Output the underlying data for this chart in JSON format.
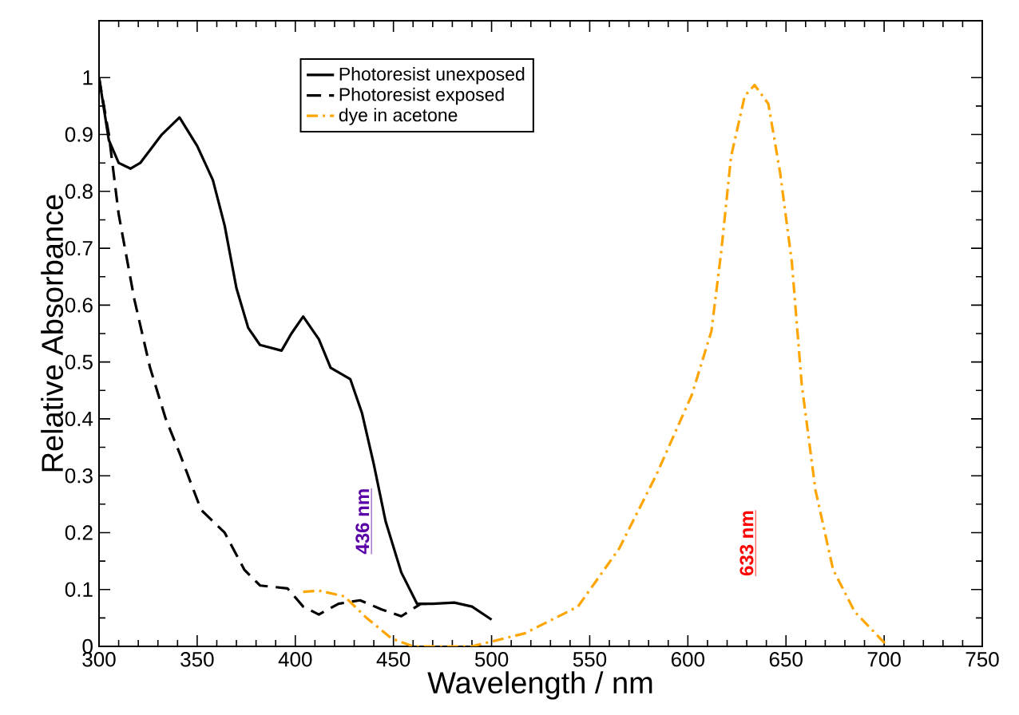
{
  "chart_data": {
    "type": "line",
    "xlabel": "Wavelength / nm",
    "ylabel": "Relative Absorbance",
    "xlim": [
      300,
      750
    ],
    "ylim": [
      0,
      1.1
    ],
    "xticks": [
      300,
      350,
      400,
      450,
      500,
      550,
      600,
      650,
      700,
      750
    ],
    "yticks": [
      0,
      0.1,
      0.2,
      0.3,
      0.4,
      0.5,
      0.6,
      0.7,
      0.8,
      0.9,
      1
    ],
    "grid": false,
    "legend": "top",
    "marker": "none",
    "annotations": [
      "436 nm",
      "633 nm"
    ],
    "series": [
      {
        "name": "Photoresist unexposed",
        "color": "#000000",
        "line_style": "solid",
        "x": [
          300,
          305,
          310,
          316,
          321,
          332,
          341,
          350,
          358,
          364,
          370,
          376,
          382,
          393,
          398,
          404,
          412,
          418,
          428,
          434,
          440,
          446,
          454,
          462,
          470,
          481,
          490,
          500
        ],
        "values": [
          1.0,
          0.89,
          0.85,
          0.84,
          0.85,
          0.9,
          0.93,
          0.88,
          0.82,
          0.74,
          0.63,
          0.56,
          0.53,
          0.52,
          0.55,
          0.58,
          0.54,
          0.49,
          0.47,
          0.41,
          0.32,
          0.22,
          0.13,
          0.075,
          0.075,
          0.077,
          0.07,
          0.047
        ]
      },
      {
        "name": "Photoresist exposed",
        "color": "#000000",
        "line_style": "dashed",
        "x": [
          300,
          305,
          310,
          318,
          326,
          334,
          341,
          352,
          364,
          374,
          382,
          396,
          404,
          412,
          422,
          433,
          444,
          454,
          464,
          470
        ],
        "values": [
          1.0,
          0.9,
          0.76,
          0.61,
          0.49,
          0.4,
          0.34,
          0.24,
          0.2,
          0.135,
          0.107,
          0.102,
          0.07,
          0.056,
          0.075,
          0.081,
          0.065,
          0.053,
          0.075,
          0.075
        ]
      },
      {
        "name": "dye in acetone",
        "color": "#ffa500",
        "line_style": "dashdot",
        "x": [
          404,
          412,
          425,
          436,
          449,
          460,
          490,
          517,
          544,
          565,
          584,
          602,
          612,
          617,
          622,
          629,
          634,
          641,
          647,
          653,
          658,
          665,
          674,
          685,
          698,
          702
        ],
        "values": [
          0.096,
          0.098,
          0.088,
          0.051,
          0.014,
          0,
          0,
          0.023,
          0.07,
          0.172,
          0.302,
          0.442,
          0.554,
          0.694,
          0.861,
          0.968,
          0.987,
          0.954,
          0.833,
          0.675,
          0.461,
          0.275,
          0.135,
          0.061,
          0.014,
          0
        ]
      }
    ]
  }
}
